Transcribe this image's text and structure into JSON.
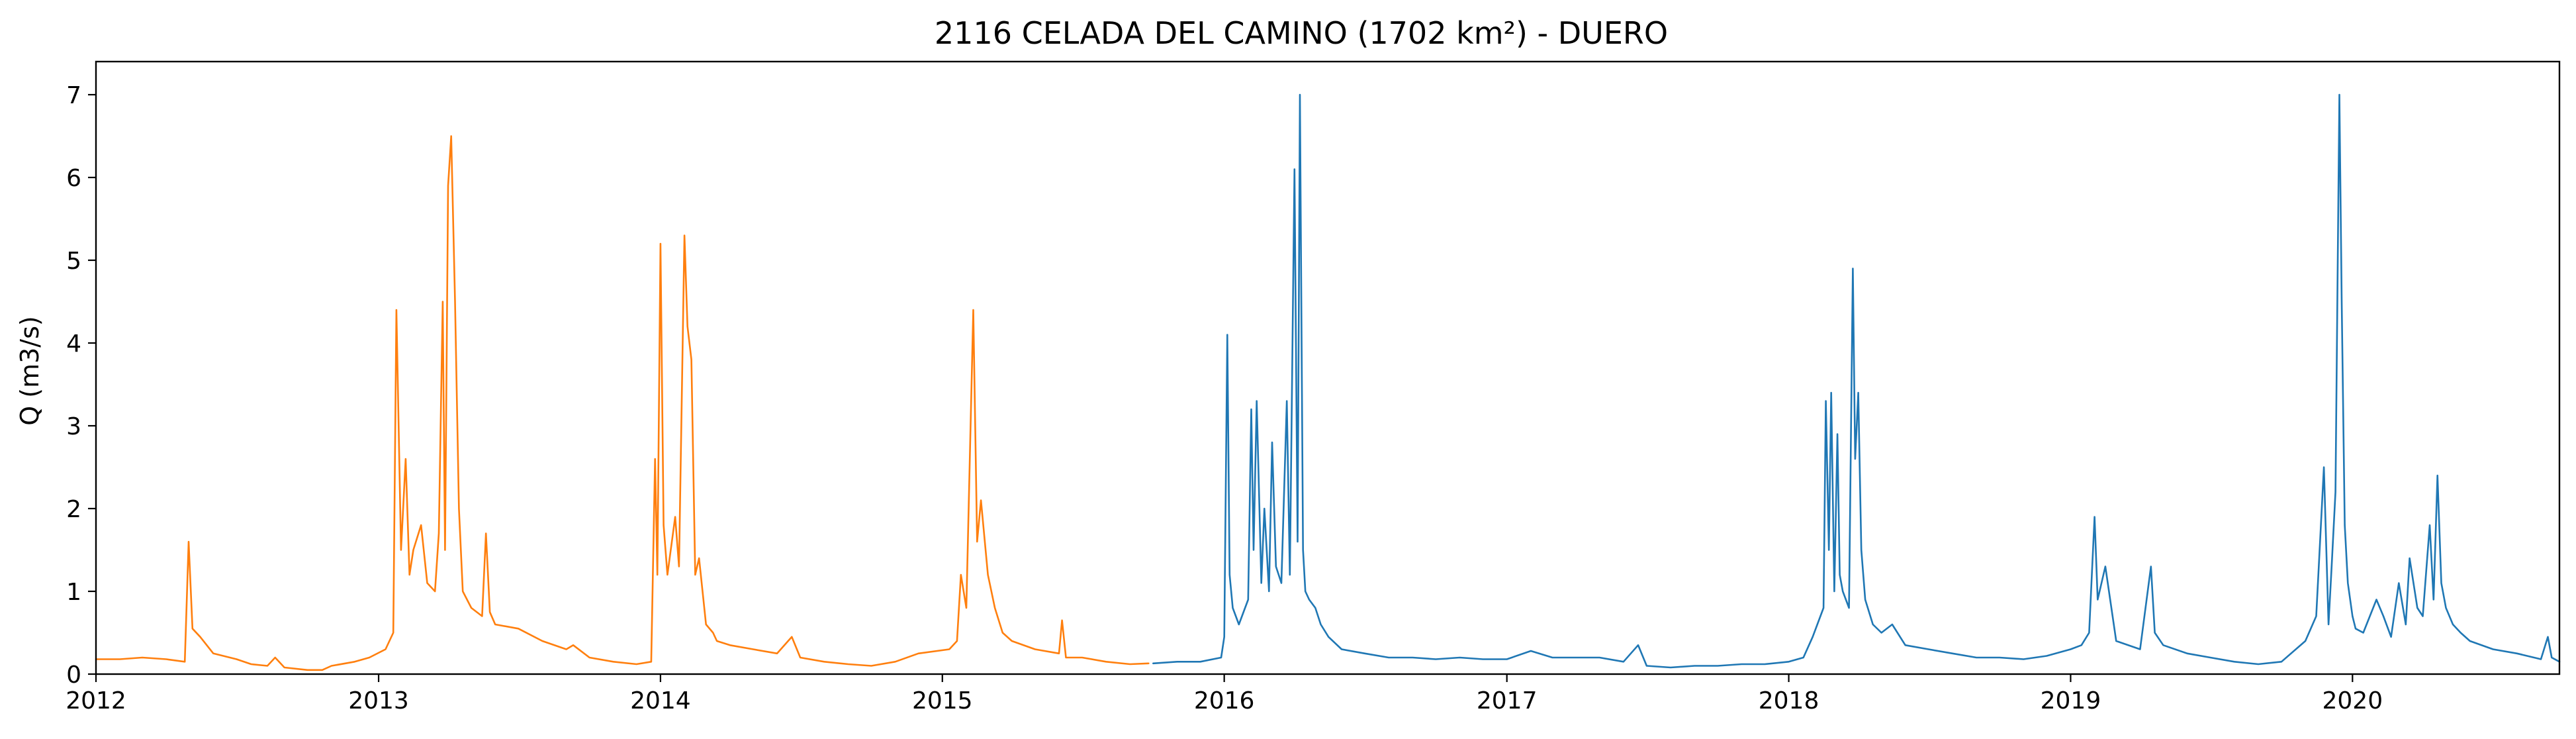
{
  "chart_data": {
    "type": "line",
    "title": "2116 CELADA DEL CAMINO (1702 km²) - DUERO",
    "xlabel": "",
    "ylabel": "Q (m3/s)",
    "xlim": [
      "2012-01-01",
      "2020-09-25"
    ],
    "ylim": [
      0,
      7.4
    ],
    "grid": false,
    "x_ticks": [
      "2012",
      "2013",
      "2014",
      "2015",
      "2016",
      "2017",
      "2018",
      "2019",
      "2020"
    ],
    "y_ticks": [
      0,
      1,
      2,
      3,
      4,
      5,
      6,
      7
    ],
    "series": [
      {
        "color": "#ff7f0e",
        "x": [
          "2012-01-01",
          "2012-02-01",
          "2012-03-01",
          "2012-04-01",
          "2012-04-25",
          "2012-04-30",
          "2012-05-05",
          "2012-05-15",
          "2012-06-01",
          "2012-07-01",
          "2012-07-20",
          "2012-08-10",
          "2012-08-20",
          "2012-09-01",
          "2012-10-01",
          "2012-10-20",
          "2012-11-01",
          "2012-12-01",
          "2012-12-20",
          "2013-01-10",
          "2013-01-20",
          "2013-01-24",
          "2013-01-30",
          "2013-02-05",
          "2013-02-10",
          "2013-02-15",
          "2013-02-25",
          "2013-03-05",
          "2013-03-15",
          "2013-03-20",
          "2013-03-25",
          "2013-03-28",
          "2013-04-01",
          "2013-04-05",
          "2013-04-10",
          "2013-04-15",
          "2013-04-20",
          "2013-05-01",
          "2013-05-15",
          "2013-05-20",
          "2013-05-25",
          "2013-06-01",
          "2013-07-01",
          "2013-08-01",
          "2013-09-01",
          "2013-09-10",
          "2013-10-01",
          "2013-11-01",
          "2013-12-01",
          "2013-12-20",
          "2013-12-25",
          "2013-12-28",
          "2014-01-01",
          "2014-01-05",
          "2014-01-10",
          "2014-01-20",
          "2014-01-25",
          "2014-02-01",
          "2014-02-05",
          "2014-02-10",
          "2014-02-15",
          "2014-02-20",
          "2014-03-01",
          "2014-03-10",
          "2014-03-15",
          "2014-04-01",
          "2014-05-01",
          "2014-06-01",
          "2014-06-20",
          "2014-07-01",
          "2014-08-01",
          "2014-09-01",
          "2014-10-01",
          "2014-11-01",
          "2014-12-01",
          "2015-01-10",
          "2015-01-20",
          "2015-01-25",
          "2015-02-01",
          "2015-02-10",
          "2015-02-15",
          "2015-02-20",
          "2015-03-01",
          "2015-03-10",
          "2015-03-20",
          "2015-04-01",
          "2015-05-01",
          "2015-06-01",
          "2015-06-05",
          "2015-06-10",
          "2015-07-01",
          "2015-08-01",
          "2015-09-01",
          "2015-09-25"
        ],
        "values": [
          0.18,
          0.18,
          0.2,
          0.18,
          0.15,
          1.6,
          0.55,
          0.45,
          0.25,
          0.18,
          0.12,
          0.1,
          0.2,
          0.08,
          0.05,
          0.05,
          0.1,
          0.15,
          0.2,
          0.3,
          0.5,
          4.4,
          1.5,
          2.6,
          1.2,
          1.5,
          1.8,
          1.1,
          1.0,
          1.7,
          4.5,
          1.5,
          5.9,
          6.5,
          4.5,
          2.0,
          1.0,
          0.8,
          0.7,
          1.7,
          0.75,
          0.6,
          0.55,
          0.4,
          0.3,
          0.35,
          0.2,
          0.15,
          0.12,
          0.15,
          2.6,
          1.2,
          5.2,
          1.8,
          1.2,
          1.9,
          1.3,
          5.3,
          4.2,
          3.8,
          1.2,
          1.4,
          0.6,
          0.5,
          0.4,
          0.35,
          0.3,
          0.25,
          0.45,
          0.2,
          0.15,
          0.12,
          0.1,
          0.15,
          0.25,
          0.3,
          0.4,
          1.2,
          0.8,
          4.4,
          1.6,
          2.1,
          1.2,
          0.8,
          0.5,
          0.4,
          0.3,
          0.25,
          0.65,
          0.2,
          0.2,
          0.15,
          0.12,
          0.13
        ]
      },
      {
        "color": "#1f77b4",
        "x": [
          "2015-10-01",
          "2015-11-01",
          "2015-12-01",
          "2015-12-28",
          "2016-01-01",
          "2016-01-05",
          "2016-01-08",
          "2016-01-12",
          "2016-01-20",
          "2016-02-01",
          "2016-02-05",
          "2016-02-08",
          "2016-02-12",
          "2016-02-18",
          "2016-02-22",
          "2016-02-28",
          "2016-03-03",
          "2016-03-08",
          "2016-03-15",
          "2016-03-22",
          "2016-03-26",
          "2016-04-01",
          "2016-04-05",
          "2016-04-08",
          "2016-04-12",
          "2016-04-15",
          "2016-04-20",
          "2016-04-28",
          "2016-05-05",
          "2016-05-15",
          "2016-06-01",
          "2016-07-01",
          "2016-08-01",
          "2016-09-01",
          "2016-10-01",
          "2016-11-01",
          "2016-12-01",
          "2017-01-01",
          "2017-02-01",
          "2017-03-01",
          "2017-04-01",
          "2017-05-01",
          "2017-06-01",
          "2017-06-20",
          "2017-07-01",
          "2017-08-01",
          "2017-09-01",
          "2017-10-01",
          "2017-11-01",
          "2017-12-01",
          "2018-01-01",
          "2018-01-20",
          "2018-02-01",
          "2018-02-15",
          "2018-02-18",
          "2018-02-22",
          "2018-02-25",
          "2018-03-01",
          "2018-03-05",
          "2018-03-08",
          "2018-03-12",
          "2018-03-20",
          "2018-03-25",
          "2018-03-28",
          "2018-04-01",
          "2018-04-05",
          "2018-04-10",
          "2018-04-20",
          "2018-05-01",
          "2018-05-15",
          "2018-06-01",
          "2018-07-01",
          "2018-08-01",
          "2018-09-01",
          "2018-10-01",
          "2018-11-01",
          "2018-12-01",
          "2019-01-01",
          "2019-01-15",
          "2019-01-25",
          "2019-02-01",
          "2019-02-05",
          "2019-02-15",
          "2019-03-01",
          "2019-04-01",
          "2019-04-15",
          "2019-04-20",
          "2019-05-01",
          "2019-06-01",
          "2019-07-01",
          "2019-08-01",
          "2019-09-01",
          "2019-10-01",
          "2019-11-01",
          "2019-11-15",
          "2019-11-25",
          "2019-12-01",
          "2019-12-05",
          "2019-12-10",
          "2019-12-15",
          "2019-12-18",
          "2019-12-22",
          "2019-12-26",
          "2020-01-01",
          "2020-01-05",
          "2020-01-15",
          "2020-02-01",
          "2020-02-10",
          "2020-02-20",
          "2020-03-01",
          "2020-03-10",
          "2020-03-15",
          "2020-03-25",
          "2020-04-01",
          "2020-04-10",
          "2020-04-15",
          "2020-04-20",
          "2020-04-25",
          "2020-05-01",
          "2020-05-10",
          "2020-05-20",
          "2020-06-01",
          "2020-07-01",
          "2020-08-01",
          "2020-09-01",
          "2020-09-10",
          "2020-09-15",
          "2020-09-25"
        ],
        "values": [
          0.13,
          0.15,
          0.15,
          0.2,
          0.45,
          4.1,
          1.2,
          0.8,
          0.6,
          0.9,
          3.2,
          1.5,
          3.3,
          1.1,
          2.0,
          1.0,
          2.8,
          1.3,
          1.1,
          3.3,
          1.2,
          6.1,
          1.6,
          7.0,
          1.5,
          1.0,
          0.9,
          0.8,
          0.6,
          0.45,
          0.3,
          0.25,
          0.2,
          0.2,
          0.18,
          0.2,
          0.18,
          0.18,
          0.28,
          0.2,
          0.2,
          0.2,
          0.15,
          0.35,
          0.1,
          0.08,
          0.1,
          0.1,
          0.12,
          0.12,
          0.15,
          0.2,
          0.45,
          0.8,
          3.3,
          1.5,
          3.4,
          1.0,
          2.9,
          1.2,
          1.0,
          0.8,
          4.9,
          2.6,
          3.4,
          1.5,
          0.9,
          0.6,
          0.5,
          0.6,
          0.35,
          0.3,
          0.25,
          0.2,
          0.2,
          0.18,
          0.22,
          0.3,
          0.35,
          0.5,
          1.9,
          0.9,
          1.3,
          0.4,
          0.3,
          1.3,
          0.5,
          0.35,
          0.25,
          0.2,
          0.15,
          0.12,
          0.15,
          0.4,
          0.7,
          2.5,
          0.6,
          1.3,
          2.2,
          7.0,
          4.5,
          1.8,
          1.1,
          0.7,
          0.55,
          0.5,
          0.9,
          0.7,
          0.45,
          1.1,
          0.6,
          1.4,
          0.8,
          0.7,
          1.8,
          0.9,
          2.4,
          1.1,
          0.8,
          0.6,
          0.5,
          0.4,
          0.3,
          0.25,
          0.18,
          0.45,
          0.2,
          0.15
        ]
      }
    ]
  }
}
